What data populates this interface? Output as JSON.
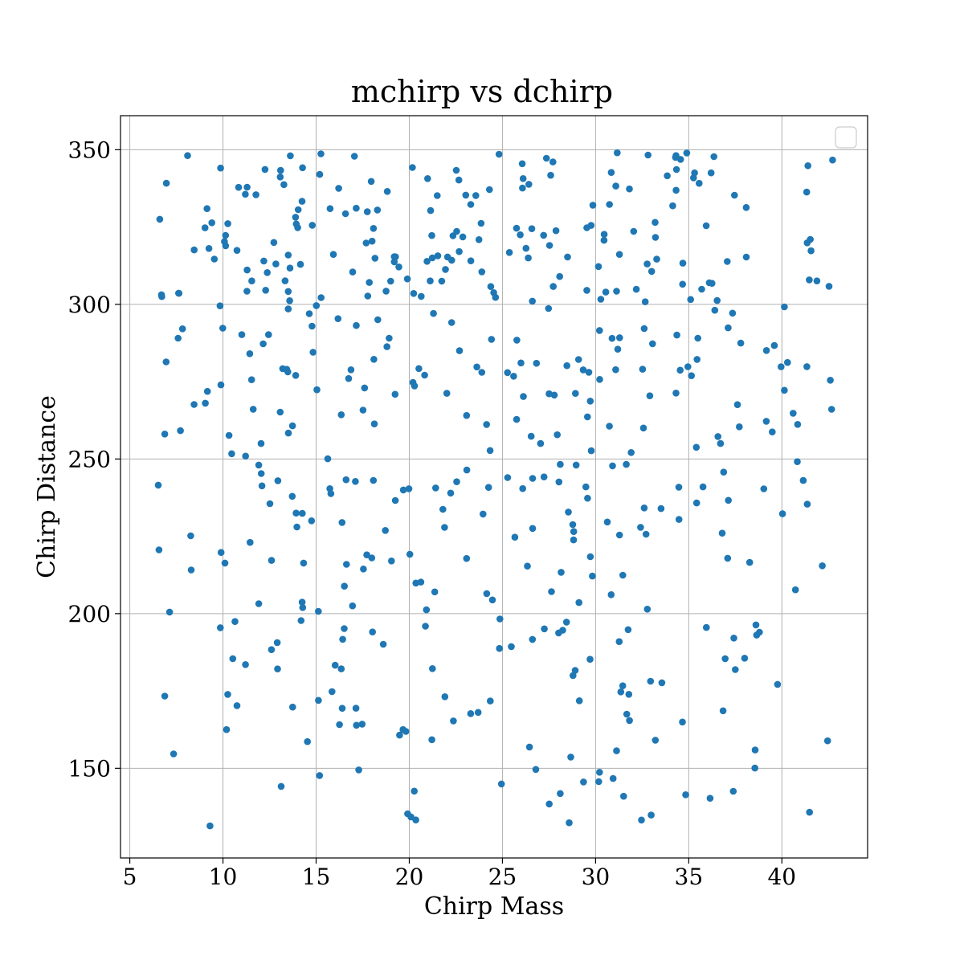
{
  "chart_data": {
    "type": "scatter",
    "title": "mchirp vs dchirp",
    "xlabel": "Chirp Mass",
    "ylabel": "Chirp Distance",
    "xlim": [
      4.5,
      44.6
    ],
    "ylim": [
      121,
      361
    ],
    "xticks": [
      5,
      10,
      15,
      20,
      25,
      30,
      35,
      40
    ],
    "yticks": [
      150,
      200,
      250,
      300,
      350
    ],
    "grid": true,
    "legend": "top-right, empty",
    "marker_color": "#1f77b4",
    "points_count": 520,
    "x_range": [
      6.4,
      42.9
    ],
    "y_range": [
      131,
      350
    ],
    "notes_density": "points densest at Chirp Distance 255-350 and Chirp Mass 12-33, sparser toward low distance"
  }
}
